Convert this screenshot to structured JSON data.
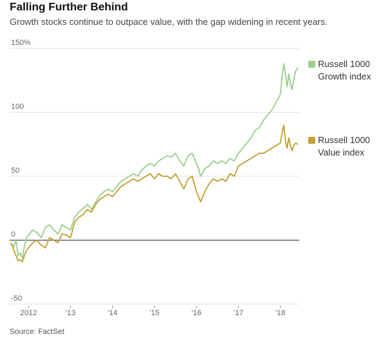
{
  "header": {
    "title": "Falling Further Behind",
    "subtitle": "Growth stocks continue to outpace value, with the gap widening in recent years."
  },
  "footer": {
    "source": "Source: FactSet"
  },
  "colors": {
    "growth": "#9ccf8e",
    "value": "#c2a136",
    "grid": "#e3e3e3",
    "zero": "#555555"
  },
  "chart_data": {
    "type": "line",
    "title": "Falling Further Behind",
    "subtitle": "Growth stocks continue to outpace value, with the gap widening in recent years.",
    "xlabel": "",
    "ylabel": "",
    "ylim": [
      -50,
      150
    ],
    "xlim": [
      2011.55,
      2018.45
    ],
    "y_ticks": [
      {
        "value": 150,
        "label": "150%"
      },
      {
        "value": 100,
        "label": "100"
      },
      {
        "value": 50,
        "label": "50"
      },
      {
        "value": 0,
        "label": "0"
      },
      {
        "value": -50,
        "label": "-50"
      }
    ],
    "x_ticks": [
      {
        "value": 2012,
        "label": "2012"
      },
      {
        "value": 2013,
        "label": "'13"
      },
      {
        "value": 2014,
        "label": "'14"
      },
      {
        "value": 2015,
        "label": "'15"
      },
      {
        "value": 2016,
        "label": "'16"
      },
      {
        "value": 2017,
        "label": "'17"
      },
      {
        "value": 2018,
        "label": "'18"
      }
    ],
    "grid": true,
    "legend": "right",
    "series": [
      {
        "name": "Russell 1000 Growth index",
        "legend_lines": [
          "Russell 1000",
          "Growth index"
        ],
        "color_key": "growth",
        "x": [
          2011.58,
          2011.65,
          2011.7,
          2011.75,
          2011.8,
          2011.85,
          2011.9,
          2011.95,
          2012.0,
          2012.1,
          2012.2,
          2012.3,
          2012.4,
          2012.5,
          2012.6,
          2012.7,
          2012.8,
          2012.9,
          2013.0,
          2013.1,
          2013.2,
          2013.3,
          2013.4,
          2013.5,
          2013.6,
          2013.7,
          2013.8,
          2013.9,
          2014.0,
          2014.1,
          2014.2,
          2014.3,
          2014.4,
          2014.5,
          2014.6,
          2014.7,
          2014.8,
          2014.9,
          2015.0,
          2015.1,
          2015.2,
          2015.3,
          2015.4,
          2015.5,
          2015.6,
          2015.7,
          2015.8,
          2015.9,
          2016.0,
          2016.05,
          2016.1,
          2016.2,
          2016.3,
          2016.4,
          2016.5,
          2016.6,
          2016.7,
          2016.8,
          2016.9,
          2017.0,
          2017.1,
          2017.2,
          2017.3,
          2017.4,
          2017.5,
          2017.6,
          2017.7,
          2017.8,
          2017.9,
          2018.0,
          2018.04,
          2018.08,
          2018.12,
          2018.16,
          2018.2,
          2018.24,
          2018.28,
          2018.32,
          2018.36,
          2018.42
        ],
        "values": [
          -2,
          -5,
          0,
          -12,
          -10,
          -14,
          -5,
          2,
          4,
          8,
          6,
          2,
          10,
          12,
          8,
          5,
          12,
          10,
          8,
          18,
          22,
          25,
          28,
          24,
          30,
          35,
          38,
          40,
          38,
          42,
          46,
          48,
          50,
          52,
          50,
          55,
          58,
          60,
          58,
          62,
          64,
          66,
          65,
          68,
          62,
          58,
          66,
          68,
          60,
          56,
          50,
          56,
          58,
          62,
          60,
          62,
          60,
          64,
          62,
          68,
          72,
          76,
          80,
          86,
          88,
          94,
          98,
          102,
          108,
          114,
          128,
          138,
          130,
          120,
          130,
          122,
          118,
          126,
          132,
          135
        ]
      },
      {
        "name": "Russell 1000 Value index",
        "legend_lines": [
          "Russell 1000",
          "Value index"
        ],
        "color_key": "value",
        "x": [
          2011.58,
          2011.65,
          2011.7,
          2011.75,
          2011.8,
          2011.85,
          2011.9,
          2011.95,
          2012.0,
          2012.1,
          2012.2,
          2012.3,
          2012.4,
          2012.5,
          2012.6,
          2012.7,
          2012.8,
          2012.9,
          2013.0,
          2013.1,
          2013.2,
          2013.3,
          2013.4,
          2013.5,
          2013.6,
          2013.7,
          2013.8,
          2013.9,
          2014.0,
          2014.1,
          2014.2,
          2014.3,
          2014.4,
          2014.5,
          2014.6,
          2014.7,
          2014.8,
          2014.9,
          2015.0,
          2015.1,
          2015.2,
          2015.3,
          2015.4,
          2015.5,
          2015.6,
          2015.7,
          2015.8,
          2015.9,
          2016.0,
          2016.05,
          2016.1,
          2016.2,
          2016.3,
          2016.4,
          2016.5,
          2016.6,
          2016.7,
          2016.8,
          2016.9,
          2017.0,
          2017.1,
          2017.2,
          2017.3,
          2017.4,
          2017.5,
          2017.6,
          2017.7,
          2017.8,
          2017.9,
          2018.0,
          2018.04,
          2018.08,
          2018.12,
          2018.16,
          2018.2,
          2018.24,
          2018.28,
          2018.32,
          2018.36,
          2018.42
        ],
        "values": [
          -2,
          -8,
          -12,
          -16,
          -15,
          -17,
          -12,
          -8,
          -6,
          -2,
          0,
          -4,
          -6,
          2,
          0,
          -2,
          5,
          4,
          2,
          14,
          18,
          20,
          24,
          22,
          28,
          32,
          34,
          36,
          34,
          38,
          42,
          44,
          46,
          48,
          46,
          48,
          50,
          52,
          48,
          52,
          50,
          50,
          48,
          52,
          46,
          40,
          48,
          50,
          38,
          34,
          30,
          38,
          44,
          48,
          46,
          48,
          46,
          52,
          50,
          58,
          60,
          62,
          64,
          66,
          68,
          68,
          70,
          72,
          74,
          76,
          84,
          90,
          78,
          72,
          80,
          74,
          70,
          74,
          76,
          75
        ]
      }
    ]
  }
}
